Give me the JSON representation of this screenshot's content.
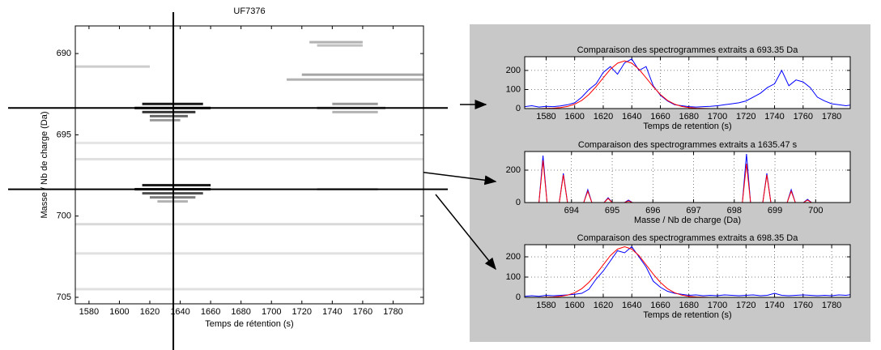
{
  "chart_data": [
    {
      "type": "heatmap",
      "title": "UF7376",
      "x_label": "Temps de rétention (s)",
      "y_label": "Masse / Nb de charge (Da)",
      "xlim": [
        1571,
        1800
      ],
      "ylim": [
        688.3,
        705.4
      ],
      "y_inverted": true,
      "xticks": [
        1580,
        1600,
        1620,
        1640,
        1660,
        1680,
        1700,
        1720,
        1740,
        1760,
        1780
      ],
      "yticks": [
        690,
        695,
        700,
        705
      ],
      "crosshair": {
        "x": 1635.47,
        "y": [
          693.35,
          698.35
        ]
      },
      "color": "#000000",
      "streaks": [
        {
          "y": 693.1,
          "x0": 1615,
          "x1": 1655,
          "intensity": 0.9
        },
        {
          "y": 693.35,
          "x0": 1610,
          "x1": 1660,
          "intensity": 1
        },
        {
          "y": 693.6,
          "x0": 1615,
          "x1": 1650,
          "intensity": 0.8
        },
        {
          "y": 693.85,
          "x0": 1620,
          "x1": 1645,
          "intensity": 0.6
        },
        {
          "y": 694.1,
          "x0": 1620,
          "x1": 1640,
          "intensity": 0.4
        },
        {
          "y": 698.1,
          "x0": 1615,
          "x1": 1660,
          "intensity": 0.9
        },
        {
          "y": 698.35,
          "x0": 1610,
          "x1": 1660,
          "intensity": 1
        },
        {
          "y": 698.6,
          "x0": 1615,
          "x1": 1655,
          "intensity": 0.7
        },
        {
          "y": 698.85,
          "x0": 1620,
          "x1": 1650,
          "intensity": 0.5
        },
        {
          "y": 699.1,
          "x0": 1625,
          "x1": 1645,
          "intensity": 0.3
        },
        {
          "y": 693.1,
          "x0": 1740,
          "x1": 1770,
          "intensity": 0.4
        },
        {
          "y": 693.35,
          "x0": 1730,
          "x1": 1775,
          "intensity": 0.5
        },
        {
          "y": 693.6,
          "x0": 1740,
          "x1": 1770,
          "intensity": 0.3
        },
        {
          "y": 691.3,
          "x0": 1720,
          "x1": 1800,
          "intensity": 0.35
        },
        {
          "y": 691.6,
          "x0": 1710,
          "x1": 1800,
          "intensity": 0.3
        },
        {
          "y": 689.3,
          "x0": 1725,
          "x1": 1760,
          "intensity": 0.3
        },
        {
          "y": 689.5,
          "x0": 1730,
          "x1": 1760,
          "intensity": 0.25
        },
        {
          "y": 698.35,
          "x0": 1730,
          "x1": 1770,
          "intensity": 0.25
        },
        {
          "y": 700.5,
          "x0": 1571,
          "x1": 1800,
          "intensity": 0.15
        },
        {
          "y": 702.3,
          "x0": 1571,
          "x1": 1800,
          "intensity": 0.12
        },
        {
          "y": 704.5,
          "x0": 1571,
          "x1": 1800,
          "intensity": 0.12
        },
        {
          "y": 696.5,
          "x0": 1571,
          "x1": 1800,
          "intensity": 0.12
        },
        {
          "y": 690.8,
          "x0": 1571,
          "x1": 1620,
          "intensity": 0.2
        },
        {
          "y": 695.5,
          "x0": 1571,
          "x1": 1800,
          "intensity": 0.1
        }
      ]
    },
    {
      "type": "line",
      "title": "Comparaison des spectrogrammes extraits a 693.35 Da",
      "x_label": "Temps de retention (s)",
      "xlim": [
        1565,
        1793
      ],
      "ylim": [
        0,
        272
      ],
      "grid": true,
      "xticks": [
        1580,
        1600,
        1620,
        1640,
        1660,
        1680,
        1700,
        1720,
        1740,
        1760,
        1780
      ],
      "yticks": [
        0,
        100,
        200
      ],
      "x": [
        1565,
        1570,
        1575,
        1580,
        1585,
        1590,
        1595,
        1600,
        1605,
        1610,
        1615,
        1620,
        1625,
        1630,
        1635,
        1640,
        1645,
        1650,
        1655,
        1660,
        1665,
        1670,
        1675,
        1680,
        1685,
        1690,
        1695,
        1700,
        1705,
        1710,
        1715,
        1720,
        1725,
        1730,
        1735,
        1740,
        1745,
        1750,
        1755,
        1760,
        1765,
        1770,
        1775,
        1780,
        1785,
        1790,
        1795
      ],
      "series": [
        {
          "color": "#0000ff",
          "values": [
            10,
            15,
            8,
            12,
            10,
            14,
            20,
            30,
            60,
            100,
            130,
            190,
            220,
            180,
            240,
            260,
            200,
            220,
            120,
            70,
            40,
            20,
            15,
            10,
            8,
            10,
            12,
            15,
            20,
            25,
            30,
            40,
            60,
            80,
            110,
            130,
            200,
            120,
            150,
            140,
            110,
            60,
            40,
            25,
            20,
            15,
            20
          ]
        },
        {
          "color": "#ff0000",
          "values": [
            0,
            0,
            0,
            1,
            2,
            5,
            11,
            23,
            43,
            74,
            115,
            161,
            206,
            238,
            250,
            238,
            206,
            161,
            115,
            74,
            43,
            23,
            11,
            5,
            2,
            1,
            0,
            0,
            0,
            0,
            0,
            0,
            0,
            0,
            0,
            0,
            0,
            0,
            0,
            0,
            0,
            0,
            0,
            0,
            0,
            0,
            0
          ]
        }
      ]
    },
    {
      "type": "line",
      "title": "Comparaison des spectrogrammes extraits a 1635.47 s",
      "x_label": "Masse / Nb de charge (Da)",
      "xlim": [
        692.85,
        700.85
      ],
      "ylim": [
        0,
        315
      ],
      "grid": true,
      "xticks": [
        694,
        695,
        696,
        697,
        698,
        699,
        700
      ],
      "yticks": [
        0,
        200
      ],
      "x": [
        692.85,
        693.2,
        693.3,
        693.4,
        693.7,
        693.8,
        693.9,
        694.3,
        694.4,
        694.5,
        694.8,
        694.9,
        695.0,
        695.3,
        695.4,
        695.5,
        698.2,
        698.3,
        698.4,
        698.7,
        698.8,
        698.9,
        699.3,
        699.4,
        699.5,
        699.7,
        699.8,
        699.9,
        700.85
      ],
      "series": [
        {
          "color": "#0000ff",
          "values": [
            0,
            0,
            290,
            0,
            0,
            180,
            0,
            0,
            80,
            0,
            0,
            30,
            0,
            0,
            15,
            0,
            0,
            300,
            0,
            0,
            180,
            0,
            0,
            80,
            0,
            0,
            20,
            0,
            0
          ]
        },
        {
          "color": "#ff0000",
          "values": [
            0,
            0,
            260,
            0,
            0,
            170,
            0,
            0,
            70,
            0,
            0,
            25,
            0,
            0,
            10,
            0,
            0,
            240,
            0,
            0,
            170,
            0,
            0,
            70,
            0,
            0,
            15,
            0,
            0
          ]
        }
      ]
    },
    {
      "type": "line",
      "title": "Comparaison des spectrogrammes extraits a 698.35 Da",
      "x_label": "Temps de retention (s)",
      "xlim": [
        1565,
        1793
      ],
      "ylim": [
        0,
        260
      ],
      "grid": true,
      "xticks": [
        1580,
        1600,
        1620,
        1640,
        1660,
        1680,
        1700,
        1720,
        1740,
        1760,
        1780
      ],
      "yticks": [
        0,
        100,
        200
      ],
      "x": [
        1565,
        1570,
        1575,
        1580,
        1585,
        1590,
        1595,
        1600,
        1605,
        1610,
        1615,
        1620,
        1625,
        1630,
        1635,
        1640,
        1645,
        1650,
        1655,
        1660,
        1665,
        1670,
        1675,
        1680,
        1685,
        1690,
        1695,
        1700,
        1705,
        1710,
        1715,
        1720,
        1725,
        1730,
        1735,
        1740,
        1745,
        1750,
        1755,
        1760,
        1765,
        1770,
        1775,
        1780,
        1785,
        1790,
        1795
      ],
      "series": [
        {
          "color": "#0000ff",
          "values": [
            5,
            8,
            5,
            10,
            8,
            10,
            12,
            15,
            20,
            40,
            90,
            130,
            180,
            230,
            220,
            250,
            200,
            150,
            80,
            50,
            30,
            20,
            15,
            10,
            12,
            8,
            10,
            8,
            12,
            10,
            8,
            10,
            12,
            8,
            10,
            20,
            10,
            8,
            10,
            12,
            10,
            8,
            10,
            8,
            12,
            10,
            15
          ]
        },
        {
          "color": "#ff0000",
          "values": [
            0,
            0,
            0,
            1,
            2,
            5,
            11,
            23,
            43,
            74,
            115,
            161,
            206,
            238,
            250,
            238,
            206,
            161,
            115,
            74,
            43,
            23,
            11,
            5,
            2,
            1,
            0,
            0,
            0,
            0,
            0,
            0,
            0,
            0,
            0,
            0,
            0,
            0,
            0,
            0,
            0,
            0,
            0,
            0,
            0,
            0,
            0
          ]
        }
      ]
    }
  ]
}
